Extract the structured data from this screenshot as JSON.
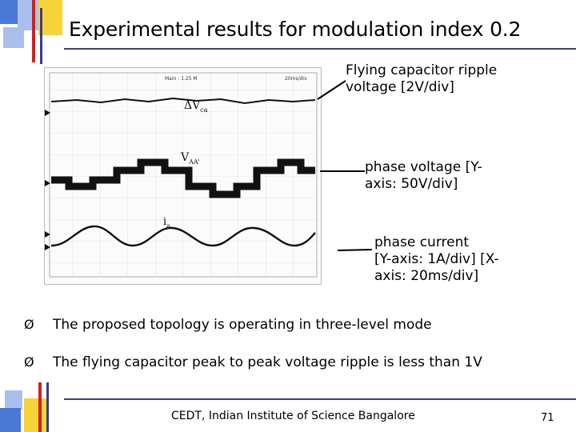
{
  "slide": {
    "title": "Experimental results for modulation index 0.2",
    "accent_colors": {
      "navy": "#3b3b8f",
      "blue": "#4a78d6",
      "light_blue": "#a9c0ef",
      "yellow": "#f7d33a",
      "red": "#d81c1c"
    }
  },
  "scope": {
    "header_left": "Main : 1.25 M",
    "header_right": "20ms/div",
    "trace_labels": {
      "capacitor": "ΔV",
      "capacitor_sub": "ca",
      "phase_voltage": "V",
      "phase_voltage_sub": "AA'",
      "current": "i",
      "current_sub": "a"
    }
  },
  "callouts": {
    "capacitor": [
      "Flying capacitor ripple",
      "voltage [2V/div]"
    ],
    "voltage": [
      "phase voltage [Y-",
      "axis: 50V/div]"
    ],
    "current": [
      "phase current",
      "[Y-axis: 1A/div] [X-",
      "axis: 20ms/div]"
    ]
  },
  "bullets": [
    {
      "marker": "Ø",
      "text": "The proposed topology is operating in three-level mode"
    },
    {
      "marker": "Ø",
      "text": "The flying capacitor peak to peak voltage ripple is less than 1V"
    }
  ],
  "footer": "CEDT, Indian Institute of Science Bangalore",
  "page_number": "71"
}
